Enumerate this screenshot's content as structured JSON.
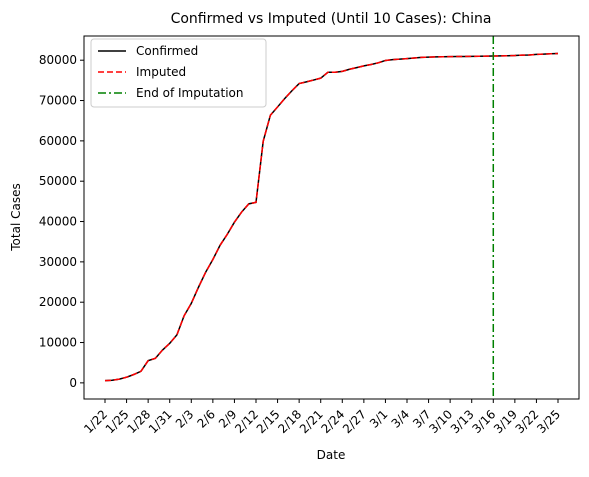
{
  "chart_data": {
    "type": "line",
    "title": "Confirmed vs Imputed (Until 10 Cases): China",
    "xlabel": "Date",
    "ylabel": "Total Cases",
    "ylim": [
      -4000,
      86000
    ],
    "yticks": [
      0,
      10000,
      20000,
      30000,
      40000,
      50000,
      60000,
      70000,
      80000
    ],
    "legend_position": "top-left",
    "grid": false,
    "x": [
      "1/22",
      "1/23",
      "1/24",
      "1/25",
      "1/26",
      "1/27",
      "1/28",
      "1/29",
      "1/30",
      "1/31",
      "2/1",
      "2/2",
      "2/3",
      "2/4",
      "2/5",
      "2/6",
      "2/7",
      "2/8",
      "2/9",
      "2/10",
      "2/11",
      "2/12",
      "2/13",
      "2/14",
      "2/15",
      "2/16",
      "2/17",
      "2/18",
      "2/19",
      "2/20",
      "2/21",
      "2/22",
      "2/23",
      "2/24",
      "2/25",
      "2/26",
      "2/27",
      "2/28",
      "2/29",
      "3/1",
      "3/2",
      "3/3",
      "3/4",
      "3/5",
      "3/6",
      "3/7",
      "3/8",
      "3/9",
      "3/10",
      "3/11",
      "3/12",
      "3/13",
      "3/14",
      "3/15",
      "3/16",
      "3/17",
      "3/18",
      "3/19",
      "3/20",
      "3/21",
      "3/22",
      "3/23",
      "3/24",
      "3/25"
    ],
    "xticks": [
      "1/22",
      "1/25",
      "1/28",
      "1/31",
      "2/3",
      "2/6",
      "2/9",
      "2/12",
      "2/15",
      "2/18",
      "2/21",
      "2/24",
      "2/27",
      "3/1",
      "3/4",
      "3/7",
      "3/10",
      "3/13",
      "3/16",
      "3/19",
      "3/22",
      "3/25"
    ],
    "series": [
      {
        "name": "Confirmed",
        "color": "#000000",
        "dash": "solid",
        "values": [
          548,
          643,
          920,
          1406,
          2075,
          2877,
          5509,
          6087,
          8141,
          9802,
          11891,
          16630,
          19716,
          23707,
          27440,
          30587,
          34110,
          36814,
          39829,
          42354,
          44386,
          44759,
          59895,
          66358,
          68413,
          70513,
          72434,
          74211,
          74619,
          75077,
          75550,
          77001,
          77022,
          77241,
          77754,
          78166,
          78600,
          78928,
          79356,
          79932,
          80136,
          80261,
          80386,
          80537,
          80690,
          80770,
          80823,
          80860,
          80887,
          80921,
          80932,
          80945,
          80977,
          81003,
          81033,
          81058,
          81102,
          81156,
          81250,
          81305,
          81435,
          81498,
          81591,
          81661
        ]
      },
      {
        "name": "Imputed",
        "color": "#ff0000",
        "dash": "dashed",
        "values": [
          548,
          643,
          920,
          1406,
          2075,
          2877,
          5509,
          6087,
          8141,
          9802,
          11891,
          16630,
          19716,
          23707,
          27440,
          30587,
          34110,
          36814,
          39829,
          42354,
          44386,
          44759,
          59895,
          66358,
          68413,
          70513,
          72434,
          74211,
          74619,
          75077,
          75550,
          77001,
          77022,
          77241,
          77754,
          78166,
          78600,
          78928,
          79356,
          79932,
          80136,
          80261,
          80386,
          80537,
          80690,
          80770,
          80823,
          80860,
          80887,
          80921,
          80932,
          80945,
          80977,
          81003,
          81033,
          81058,
          81102,
          81156,
          81250,
          81305,
          81435,
          81498,
          81591,
          81661
        ]
      }
    ],
    "vline": {
      "name": "End of Imputation",
      "x": "3/16",
      "color": "#008000",
      "dash": "dashdot"
    }
  }
}
